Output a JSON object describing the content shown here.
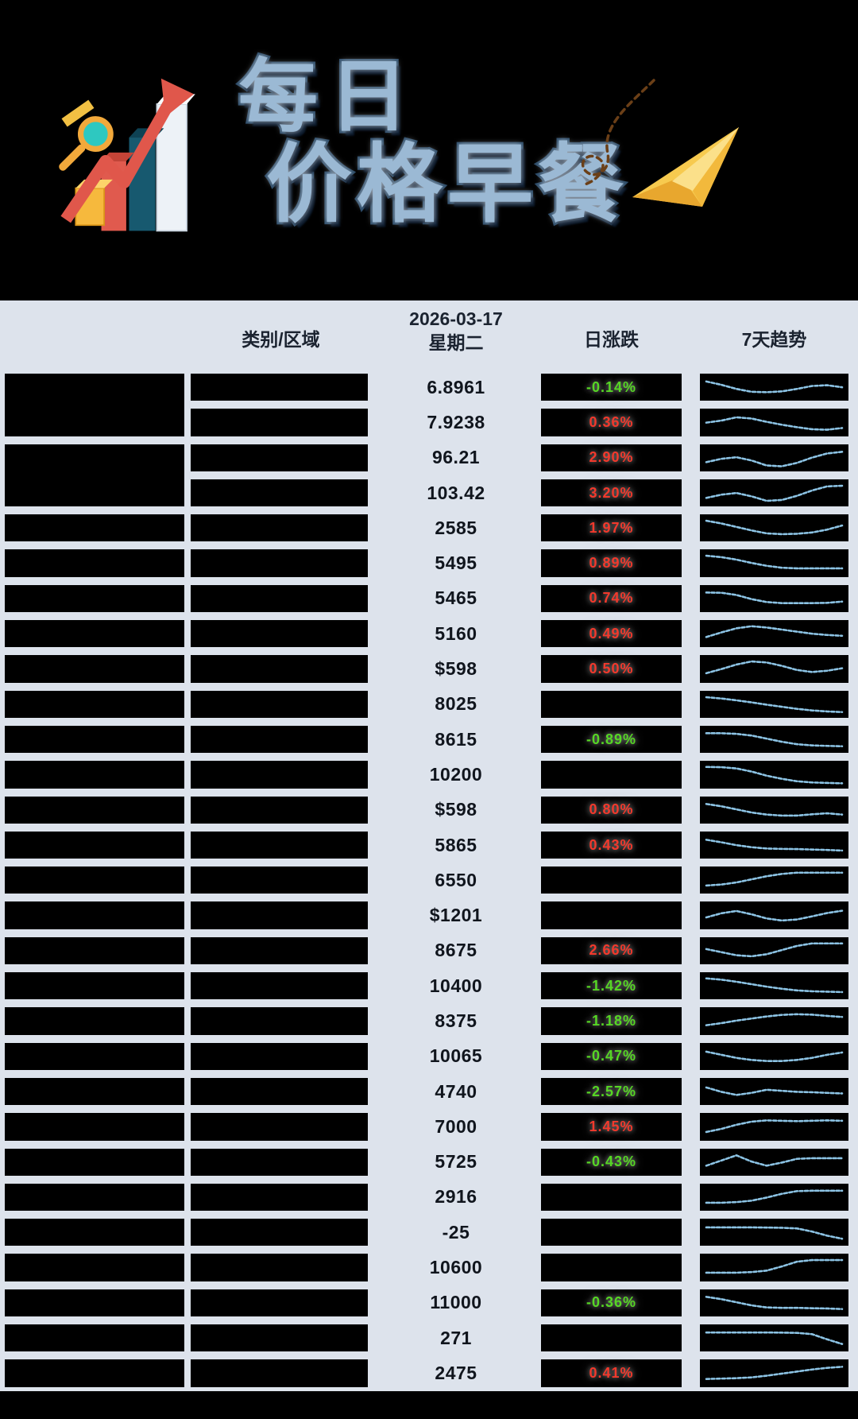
{
  "hero": {
    "title_line1": "每日",
    "title_line2": "价格早餐"
  },
  "table": {
    "headers": {
      "category": "类别/区域",
      "date_line1": "2026-03-17",
      "date_line2": "星期二",
      "daily_change": "日涨跌",
      "trend7": "7天趋势"
    },
    "col1_groups": [
      {
        "row": 1,
        "span": 2
      },
      {
        "row": 3,
        "span": 2
      },
      {
        "row": 5,
        "span": 1
      },
      {
        "row": 6,
        "span": 1
      },
      {
        "row": 7,
        "span": 1
      },
      {
        "row": 8,
        "span": 1
      },
      {
        "row": 9,
        "span": 1
      },
      {
        "row": 10,
        "span": 1
      },
      {
        "row": 11,
        "span": 1
      },
      {
        "row": 12,
        "span": 1
      },
      {
        "row": 13,
        "span": 1
      },
      {
        "row": 14,
        "span": 1
      },
      {
        "row": 15,
        "span": 1
      },
      {
        "row": 16,
        "span": 1
      },
      {
        "row": 17,
        "span": 1
      },
      {
        "row": 18,
        "span": 1
      },
      {
        "row": 19,
        "span": 1
      },
      {
        "row": 20,
        "span": 1
      },
      {
        "row": 21,
        "span": 1
      },
      {
        "row": 22,
        "span": 1
      },
      {
        "row": 23,
        "span": 1
      },
      {
        "row": 24,
        "span": 1
      },
      {
        "row": 25,
        "span": 1
      },
      {
        "row": 26,
        "span": 1
      },
      {
        "row": 27,
        "span": 1
      },
      {
        "row": 28,
        "span": 1
      },
      {
        "row": 29,
        "span": 1
      }
    ],
    "rows": [
      {
        "price": "6.8961",
        "change": "-0.14%",
        "direction": "down",
        "trend": [
          78,
          62,
          42,
          28,
          26,
          30,
          42,
          56,
          60,
          50
        ]
      },
      {
        "price": "7.9238",
        "change": "0.36%",
        "direction": "up",
        "trend": [
          48,
          58,
          74,
          68,
          52,
          38,
          26,
          16,
          14,
          22
        ]
      },
      {
        "price": "96.21",
        "change": "2.90%",
        "direction": "up",
        "trend": [
          30,
          46,
          54,
          38,
          14,
          10,
          26,
          52,
          72,
          80
        ]
      },
      {
        "price": "103.42",
        "change": "3.20%",
        "direction": "up",
        "trend": [
          26,
          42,
          50,
          34,
          12,
          16,
          36,
          62,
          82,
          85
        ]
      },
      {
        "price": "2585",
        "change": "1.97%",
        "direction": "up",
        "trend": [
          85,
          72,
          55,
          38,
          24,
          20,
          22,
          28,
          42,
          62
        ]
      },
      {
        "price": "5495",
        "change": "0.89%",
        "direction": "up",
        "trend": [
          85,
          78,
          66,
          50,
          36,
          27,
          24,
          24,
          24,
          24
        ]
      },
      {
        "price": "5465",
        "change": "0.74%",
        "direction": "up",
        "trend": [
          80,
          79,
          68,
          48,
          34,
          29,
          29,
          29,
          30,
          36
        ]
      },
      {
        "price": "5160",
        "change": "0.49%",
        "direction": "up",
        "trend": [
          34,
          56,
          76,
          86,
          80,
          70,
          60,
          50,
          44,
          40
        ]
      },
      {
        "price": "$598",
        "change": "0.50%",
        "direction": "up",
        "trend": [
          28,
          48,
          70,
          85,
          80,
          64,
          44,
          34,
          40,
          52
        ]
      },
      {
        "price": "8025",
        "change": "",
        "direction": "none",
        "trend": [
          85,
          79,
          70,
          60,
          49,
          39,
          29,
          21,
          16,
          13
        ]
      },
      {
        "price": "8615",
        "change": "-0.89%",
        "direction": "down",
        "trend": [
          80,
          80,
          77,
          69,
          54,
          39,
          27,
          21,
          19,
          17
        ]
      },
      {
        "price": "10200",
        "change": "",
        "direction": "none",
        "trend": [
          86,
          85,
          79,
          64,
          44,
          29,
          17,
          11,
          9,
          7
        ]
      },
      {
        "price": "$598",
        "change": "0.80%",
        "direction": "up",
        "trend": [
          80,
          69,
          54,
          39,
          29,
          24,
          24,
          30,
          35,
          29
        ]
      },
      {
        "price": "5865",
        "change": "0.43%",
        "direction": "up",
        "trend": [
          76,
          64,
          50,
          40,
          34,
          32,
          31,
          29,
          27,
          24
        ]
      },
      {
        "price": "6550",
        "change": "",
        "direction": "none",
        "trend": [
          24,
          29,
          39,
          54,
          69,
          80,
          86,
          86,
          86,
          86
        ]
      },
      {
        "price": "$1201",
        "change": "",
        "direction": "none",
        "trend": [
          39,
          59,
          70,
          54,
          34,
          24,
          29,
          44,
          60,
          71
        ]
      },
      {
        "price": "8675",
        "change": "2.66%",
        "direction": "up",
        "trend": [
          59,
          44,
          29,
          24,
          34,
          54,
          74,
          86,
          86,
          86
        ]
      },
      {
        "price": "10400",
        "change": "-1.42%",
        "direction": "down",
        "trend": [
          86,
          80,
          70,
          58,
          46,
          36,
          28,
          24,
          22,
          20
        ]
      },
      {
        "price": "8375",
        "change": "-1.18%",
        "direction": "down",
        "trend": [
          29,
          39,
          51,
          61,
          71,
          79,
          82,
          80,
          74,
          69
        ]
      },
      {
        "price": "10065",
        "change": "-0.47%",
        "direction": "down",
        "trend": [
          74,
          59,
          44,
          34,
          29,
          29,
          34,
          44,
          59,
          70
        ]
      },
      {
        "price": "4740",
        "change": "-2.57%",
        "direction": "down",
        "trend": [
          70,
          49,
          34,
          44,
          59,
          54,
          49,
          47,
          44,
          41
        ]
      },
      {
        "price": "7000",
        "change": "1.45%",
        "direction": "up",
        "trend": [
          24,
          39,
          59,
          74,
          80,
          78,
          76,
          78,
          80,
          78
        ]
      },
      {
        "price": "5725",
        "change": "-0.43%",
        "direction": "down",
        "trend": [
          34,
          59,
          84,
          54,
          34,
          49,
          67,
          70,
          70,
          70
        ]
      },
      {
        "price": "2916",
        "change": "",
        "direction": "none",
        "trend": [
          24,
          24,
          27,
          34,
          49,
          67,
          80,
          82,
          82,
          82
        ]
      },
      {
        "price": "-25",
        "change": "",
        "direction": "none",
        "trend": [
          74,
          74,
          74,
          74,
          73,
          72,
          69,
          54,
          34,
          19
        ]
      },
      {
        "price": "10600",
        "change": "",
        "direction": "none",
        "trend": [
          24,
          24,
          24,
          27,
          34,
          54,
          77,
          85,
          85,
          85
        ]
      },
      {
        "price": "11000",
        "change": "-0.36%",
        "direction": "down",
        "trend": [
          80,
          69,
          54,
          39,
          29,
          27,
          27,
          25,
          24,
          21
        ]
      },
      {
        "price": "271",
        "change": "",
        "direction": "none",
        "trend": [
          77,
          77,
          77,
          77,
          77,
          76,
          75,
          69,
          44,
          21
        ]
      },
      {
        "price": "2475",
        "change": "0.41%",
        "direction": "up",
        "trend": [
          21,
          23,
          25,
          29,
          37,
          47,
          57,
          67,
          75,
          80
        ]
      }
    ]
  },
  "colors": {
    "up_red": "#f2392c",
    "down_green": "#56d724",
    "spark_blue": "#8cc3e4",
    "table_bg": "#dde3ec",
    "title_blue": "#9bb9d4"
  },
  "icons": {
    "chart_illustration": "bar-chart-arrow-icon",
    "paper_plane": "paper-plane-icon",
    "swirl": "dashed-swirl-decoration"
  }
}
